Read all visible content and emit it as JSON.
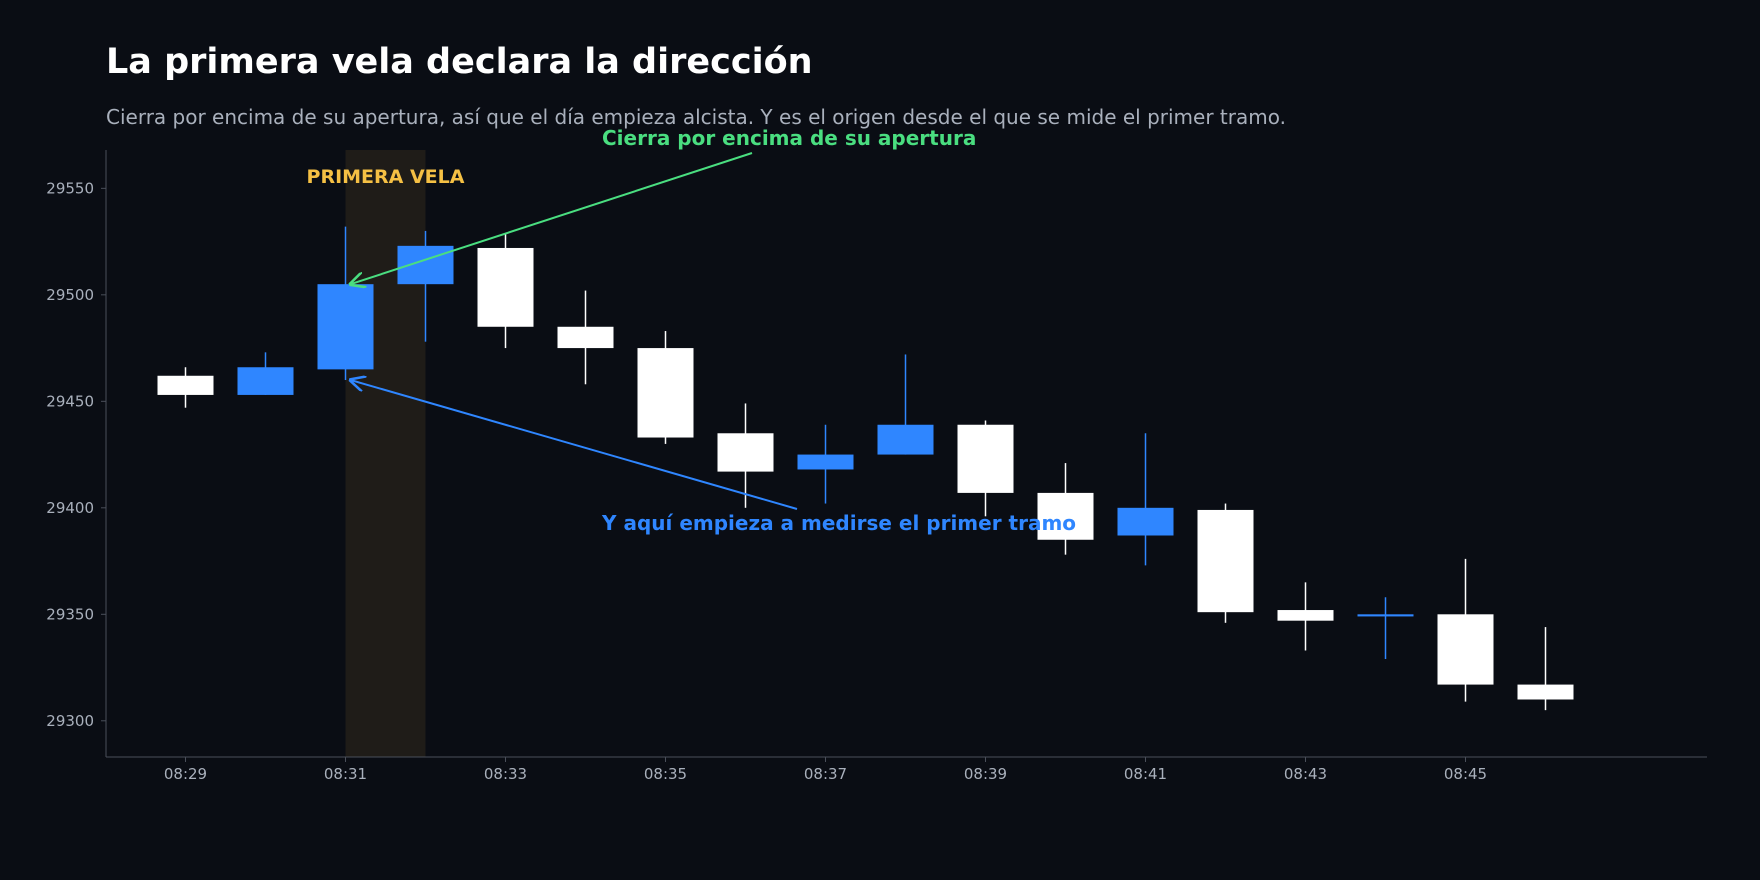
{
  "title": "La primera vela declara la dirección",
  "subtitle": "Cierra por encima de su apertura, así que el día empieza alcista. Y es el origen desde el que se mide el primer tramo.",
  "chart_data": {
    "type": "candlestick",
    "x_tick_labels": [
      "08:29",
      "08:31",
      "08:33",
      "08:35",
      "08:37",
      "08:39",
      "08:41",
      "08:43",
      "08:45"
    ],
    "y_ticks": [
      29300,
      29350,
      29400,
      29450,
      29500,
      29550
    ],
    "ylim": [
      29283,
      29568
    ],
    "candles": [
      {
        "time": "08:29",
        "open": 29462,
        "close": 29453,
        "high": 29466,
        "low": 29447
      },
      {
        "time": "08:30",
        "open": 29453,
        "close": 29466,
        "high": 29473,
        "low": 29453
      },
      {
        "time": "08:31",
        "open": 29465,
        "close": 29505,
        "high": 29532,
        "low": 29460
      },
      {
        "time": "08:32",
        "open": 29505,
        "close": 29523,
        "high": 29530,
        "low": 29478
      },
      {
        "time": "08:33",
        "open": 29522,
        "close": 29485,
        "high": 29529,
        "low": 29475
      },
      {
        "time": "08:34",
        "open": 29485,
        "close": 29475,
        "high": 29502,
        "low": 29458
      },
      {
        "time": "08:35",
        "open": 29475,
        "close": 29433,
        "high": 29483,
        "low": 29430
      },
      {
        "time": "08:36",
        "open": 29435,
        "close": 29417,
        "high": 29449,
        "low": 29400
      },
      {
        "time": "08:37",
        "open": 29418,
        "close": 29425,
        "high": 29439,
        "low": 29402
      },
      {
        "time": "08:38",
        "open": 29425,
        "close": 29439,
        "high": 29472,
        "low": 29425
      },
      {
        "time": "08:39",
        "open": 29439,
        "close": 29407,
        "high": 29441,
        "low": 29396
      },
      {
        "time": "08:40",
        "open": 29407,
        "close": 29385,
        "high": 29421,
        "low": 29378
      },
      {
        "time": "08:41",
        "open": 29387,
        "close": 29400,
        "high": 29435,
        "low": 29373
      },
      {
        "time": "08:42",
        "open": 29399,
        "close": 29351,
        "high": 29402,
        "low": 29346
      },
      {
        "time": "08:43",
        "open": 29352,
        "close": 29347,
        "high": 29365,
        "low": 29333
      },
      {
        "time": "08:44",
        "open": 29349,
        "close": 29350,
        "high": 29358,
        "low": 29329
      },
      {
        "time": "08:45",
        "open": 29350,
        "close": 29317,
        "high": 29376,
        "low": 29309
      },
      {
        "time": "08:46",
        "open": 29317,
        "close": 29310,
        "high": 29344,
        "low": 29305
      }
    ],
    "highlight": {
      "candle": "08:31",
      "label": "PRIMERA VELA"
    },
    "annotations": [
      {
        "text": "Cierra por encima de su apertura",
        "target_time": "08:31",
        "target_value": 29505,
        "color": "#4ade80"
      },
      {
        "text": "Y aquí empieza a medirse el primer tramo",
        "target_time": "08:31",
        "target_value": 29460,
        "color": "#2f86ff"
      }
    ],
    "colors": {
      "bullish": "#2f86ff",
      "bearish": "#ffffff",
      "highlight": "#f5c044",
      "axis_text": "#a9b0bc",
      "background": "#0a0d14"
    }
  }
}
